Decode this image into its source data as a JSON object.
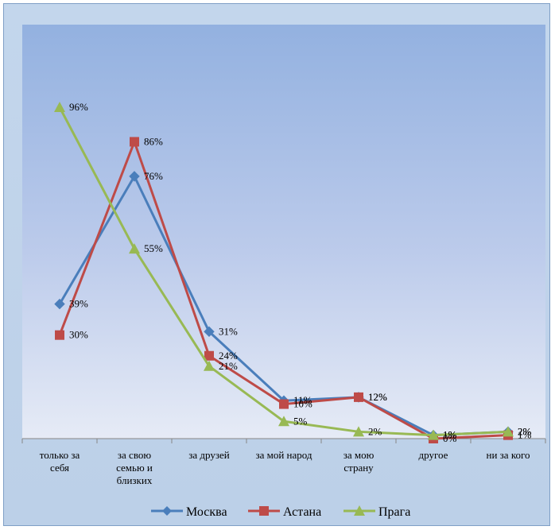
{
  "chart_data": {
    "type": "line",
    "categories": [
      [
        "только за",
        "себя"
      ],
      [
        "за свою",
        "семью и",
        "близких"
      ],
      [
        "за друзей"
      ],
      [
        "за мой народ"
      ],
      [
        "за мою",
        "страну"
      ],
      [
        "другое"
      ],
      [
        "ни за кого"
      ]
    ],
    "series": [
      {
        "name": "Москва",
        "color": "#4a7ebb",
        "marker": "diamond",
        "values": [
          39,
          76,
          31,
          11,
          12,
          1,
          2
        ],
        "labels": [
          "39%",
          "76%",
          "31%",
          "11%",
          "12%",
          "1%",
          "2%"
        ]
      },
      {
        "name": "Астана",
        "color": "#be4b48",
        "marker": "square",
        "values": [
          30,
          86,
          24,
          10,
          12,
          0,
          1
        ],
        "labels": [
          "30%",
          "86%",
          "24%",
          "10%",
          "12%",
          "0%",
          "1%"
        ]
      },
      {
        "name": "Прага",
        "color": "#98b954",
        "marker": "triangle",
        "values": [
          96,
          55,
          21,
          5,
          2,
          1,
          2
        ],
        "labels": [
          "96%",
          "55%",
          "21%",
          "5%",
          "2%",
          "1%",
          "2%"
        ]
      }
    ],
    "ylim": [
      0,
      100
    ],
    "grid": false,
    "legend_position": "bottom"
  }
}
